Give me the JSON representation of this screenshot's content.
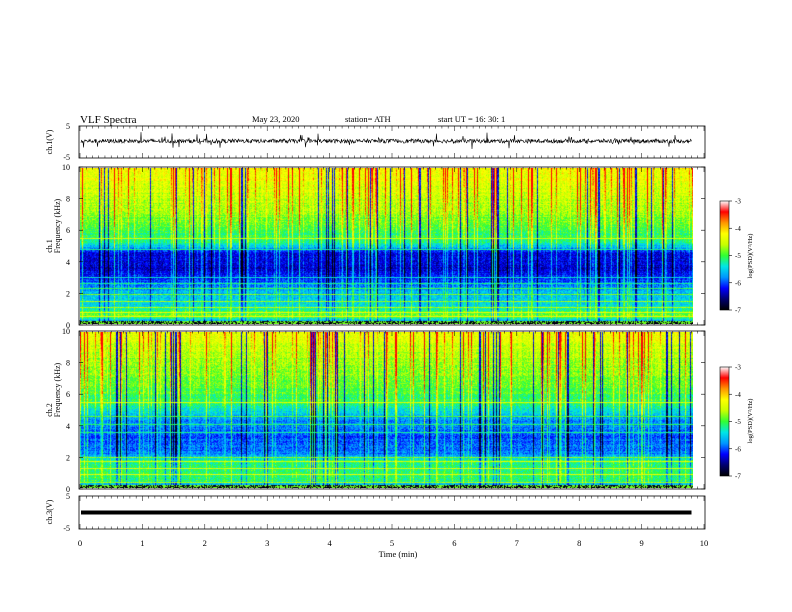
{
  "header": {
    "title": "VLF  Spectra",
    "date": "May 23, 2020",
    "station": "station= ATH",
    "start": "start  UT  =    16: 30: 1"
  },
  "colors": {
    "waveform": "#000000",
    "colormap": [
      "#000000",
      "#00006e",
      "#0000ff",
      "#0096ff",
      "#00e6e6",
      "#32ff32",
      "#c8ff00",
      "#ffff00",
      "#ff9600",
      "#ff0000",
      "#ffffff"
    ]
  },
  "chart_data": [
    {
      "type": "line",
      "panel": "ch1-waveform",
      "ylabel": "ch.1(V)",
      "ylim": [
        -5,
        5
      ],
      "yticks": [
        "5",
        "-5"
      ],
      "xlim": [
        0,
        10
      ],
      "x_end": 9.8,
      "baseline": 0.3,
      "amplitude": 2.5
    },
    {
      "type": "heatmap",
      "panel": "ch1-spectrogram",
      "ylabel_line1": "ch.1",
      "ylabel_line2": "Frequency  (kHz)",
      "ylim": [
        0,
        10
      ],
      "yticks": [
        "0",
        "2",
        "4",
        "6",
        "8",
        "10"
      ],
      "xlim": [
        0,
        10
      ],
      "x_end": 9.8,
      "colorbar": {
        "label": "log(PSD)(V²/Hz)",
        "range": [
          -7,
          -3
        ],
        "ticks": [
          "-3",
          "-4",
          "-5",
          "-6",
          "-7"
        ]
      },
      "profile": [
        {
          "f": 0.0,
          "v": 0.2
        },
        {
          "f": 0.6,
          "v": 0.6
        },
        {
          "f": 1.0,
          "v": 0.45
        },
        {
          "f": 2.0,
          "v": 0.38
        },
        {
          "f": 2.8,
          "v": 0.25
        },
        {
          "f": 3.5,
          "v": 0.16
        },
        {
          "f": 4.6,
          "v": 0.18
        },
        {
          "f": 5.2,
          "v": 0.46
        },
        {
          "f": 6.5,
          "v": 0.56
        },
        {
          "f": 8.0,
          "v": 0.64
        },
        {
          "f": 10.0,
          "v": 0.72
        }
      ],
      "lines_khz": [
        0.5,
        0.8,
        1.1,
        1.5,
        1.9,
        2.3,
        2.6,
        3.0,
        4.8,
        5.5
      ]
    },
    {
      "type": "heatmap",
      "panel": "ch2-spectrogram",
      "ylabel_line1": "ch.2",
      "ylabel_line2": "Frequency  (kHz)",
      "ylim": [
        0,
        10
      ],
      "yticks": [
        "0",
        "2",
        "4",
        "6",
        "8",
        "10"
      ],
      "xlim": [
        0,
        10
      ],
      "x_end": 9.8,
      "colorbar": {
        "label": "log(PSD)(V²/Hz)",
        "range": [
          -7,
          -3
        ],
        "ticks": [
          "-3",
          "-4",
          "-5",
          "-6",
          "-7"
        ]
      },
      "profile": [
        {
          "f": 0.0,
          "v": 0.2
        },
        {
          "f": 0.5,
          "v": 0.5
        },
        {
          "f": 1.0,
          "v": 0.52
        },
        {
          "f": 1.8,
          "v": 0.48
        },
        {
          "f": 2.2,
          "v": 0.3
        },
        {
          "f": 3.2,
          "v": 0.26
        },
        {
          "f": 4.4,
          "v": 0.32
        },
        {
          "f": 5.5,
          "v": 0.5
        },
        {
          "f": 7.0,
          "v": 0.57
        },
        {
          "f": 8.5,
          "v": 0.62
        },
        {
          "f": 10.0,
          "v": 0.7
        }
      ],
      "lines_khz": [
        0.4,
        0.9,
        1.3,
        1.7,
        2.0,
        3.6,
        4.1,
        4.6,
        5.5
      ]
    },
    {
      "type": "line",
      "panel": "ch3-waveform",
      "ylabel": "ch.3(V)",
      "ylim": [
        -5,
        5
      ],
      "yticks": [
        "5",
        "-5"
      ],
      "xlim": [
        0,
        10
      ],
      "x_end": 9.8,
      "baseline": 0,
      "amplitude": 0
    }
  ],
  "xaxis": {
    "label": "Time  (min)",
    "ticks": [
      "0",
      "1",
      "2",
      "3",
      "4",
      "5",
      "6",
      "7",
      "8",
      "9",
      "10"
    ]
  }
}
